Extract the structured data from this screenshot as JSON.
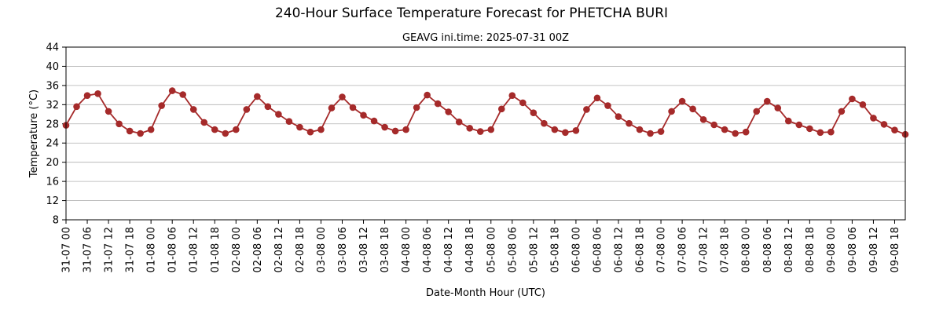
{
  "chart_data": {
    "type": "line",
    "title": "240-Hour Surface Temperature Forecast for PHETCHA BURI",
    "subtitle": "GEAVG ini.time: 2025-07-31 00Z",
    "xlabel": "Date-Month Hour (UTC)",
    "ylabel": "Temperature (°C)",
    "ylim": [
      8,
      44
    ],
    "yticks": [
      "8",
      "12",
      "16",
      "20",
      "24",
      "28",
      "32",
      "36",
      "40",
      "44"
    ],
    "grid": "horizontal",
    "x_step_hours": 3,
    "xticks": [
      "31-07 00",
      "31-07 06",
      "31-07 12",
      "31-07 18",
      "01-08 00",
      "01-08 06",
      "01-08 12",
      "01-08 18",
      "02-08 00",
      "02-08 06",
      "02-08 12",
      "02-08 18",
      "03-08 00",
      "03-08 06",
      "03-08 12",
      "03-08 18",
      "04-08 00",
      "04-08 06",
      "04-08 12",
      "04-08 18",
      "05-08 00",
      "05-08 06",
      "05-08 12",
      "05-08 18",
      "06-08 00",
      "06-08 06",
      "06-08 12",
      "06-08 18",
      "07-08 00",
      "07-08 06",
      "07-08 12",
      "07-08 18",
      "08-08 00",
      "08-08 06",
      "08-08 12",
      "08-08 18",
      "09-08 00",
      "09-08 06",
      "09-08 12",
      "09-08 18"
    ],
    "series": [
      {
        "color": "#a52a2a",
        "values": [
          27.7,
          31.6,
          33.9,
          34.3,
          30.6,
          28.0,
          26.5,
          26.0,
          26.8,
          31.8,
          34.9,
          34.1,
          31.0,
          28.3,
          26.8,
          26.0,
          26.8,
          31.0,
          33.7,
          31.6,
          30.0,
          28.5,
          27.3,
          26.3,
          26.8,
          31.3,
          33.6,
          31.4,
          29.8,
          28.6,
          27.3,
          26.5,
          26.8,
          31.4,
          34.0,
          32.2,
          30.5,
          28.4,
          27.1,
          26.4,
          26.8,
          31.1,
          33.9,
          32.4,
          30.3,
          28.1,
          26.8,
          26.2,
          26.6,
          31.0,
          33.4,
          31.8,
          29.5,
          28.1,
          26.8,
          26.0,
          26.4,
          30.6,
          32.7,
          31.1,
          28.9,
          27.8,
          26.8,
          26.0,
          26.3,
          30.6,
          32.7,
          31.3,
          28.6,
          27.8,
          27.0,
          26.2,
          26.3,
          30.6,
          33.2,
          32.0,
          29.2,
          27.9,
          26.7,
          25.8
        ]
      }
    ]
  }
}
